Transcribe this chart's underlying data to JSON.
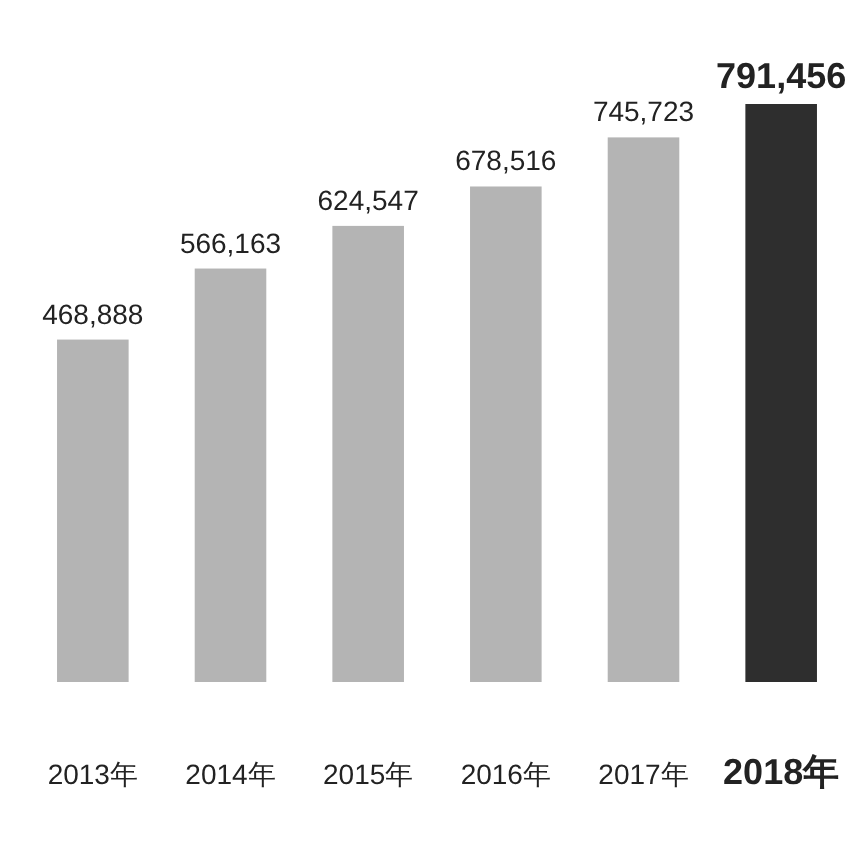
{
  "chart_data": {
    "type": "bar",
    "categories": [
      "2013年",
      "2014年",
      "2015年",
      "2016年",
      "2017年",
      "2018年"
    ],
    "values": [
      468888,
      566163,
      624547,
      678516,
      745723,
      791456
    ],
    "colors": [
      "#b4b4b4",
      "#b4b4b4",
      "#b4b4b4",
      "#b4b4b4",
      "#b4b4b4",
      "#2e2e2e"
    ],
    "value_labels": [
      "468,888",
      "566,163",
      "624,547",
      "678,516",
      "745,723",
      "791,456"
    ]
  }
}
